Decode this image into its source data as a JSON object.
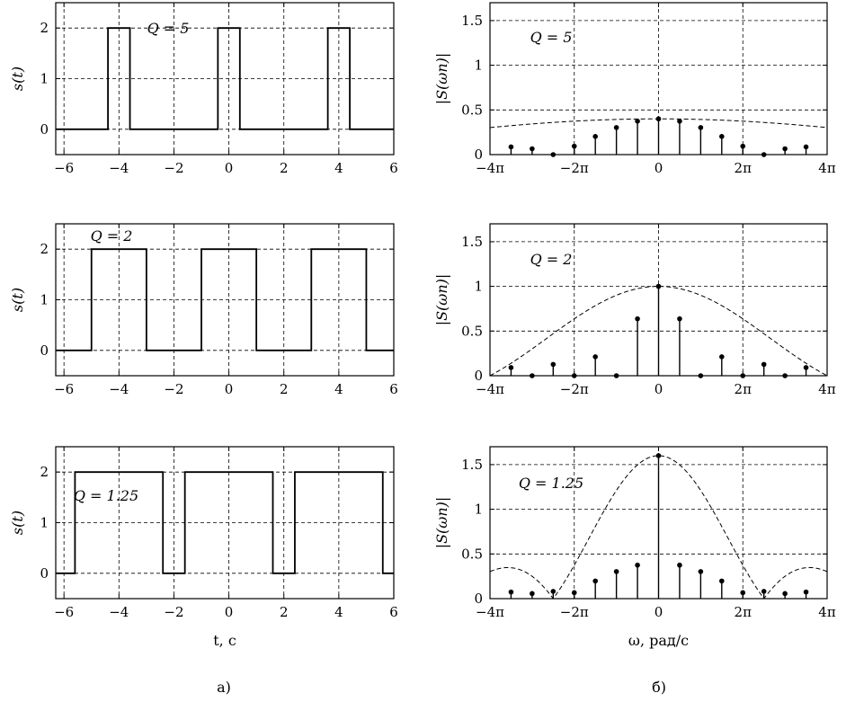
{
  "figure": {
    "captions": {
      "left": "а)",
      "right": "б)"
    }
  },
  "chart_data": [
    {
      "type": "line",
      "panel": "time-Q5",
      "annotation": "Q = 5",
      "xlabel": "",
      "ylabel": "s(t)",
      "xlim": [
        -6.3,
        6
      ],
      "ylim": [
        -0.5,
        2.5
      ],
      "xticks": [
        -6,
        -4,
        -2,
        0,
        2,
        4,
        6
      ],
      "xtick_labels": [
        "−6",
        "−4",
        "−2",
        "0",
        "2",
        "4",
        "6"
      ],
      "yticks": [
        0,
        1,
        2
      ],
      "ytick_labels": [
        "0",
        "1",
        "2"
      ],
      "grid": true,
      "period": 4,
      "pulse_width": 0.8,
      "amplitude": 2,
      "pulse_centers": [
        -4,
        0,
        4
      ]
    },
    {
      "type": "line",
      "panel": "time-Q2",
      "annotation": "Q = 2",
      "xlabel": "",
      "ylabel": "s(t)",
      "xlim": [
        -6.3,
        6
      ],
      "ylim": [
        -0.5,
        2.5
      ],
      "xticks": [
        -6,
        -4,
        -2,
        0,
        2,
        4,
        6
      ],
      "xtick_labels": [
        "−6",
        "−4",
        "−2",
        "0",
        "2",
        "4",
        "6"
      ],
      "yticks": [
        0,
        1,
        2
      ],
      "ytick_labels": [
        "0",
        "1",
        "2"
      ],
      "grid": true,
      "period": 4,
      "pulse_width": 2,
      "amplitude": 2,
      "pulse_centers": [
        -4,
        0,
        4
      ]
    },
    {
      "type": "line",
      "panel": "time-Q1.25",
      "annotation": "Q = 1.25",
      "xlabel": "t, с",
      "ylabel": "s(t)",
      "xlim": [
        -6.3,
        6
      ],
      "ylim": [
        -0.5,
        2.5
      ],
      "xticks": [
        -6,
        -4,
        -2,
        0,
        2,
        4,
        6
      ],
      "xtick_labels": [
        "−6",
        "−4",
        "−2",
        "0",
        "2",
        "4",
        "6"
      ],
      "yticks": [
        0,
        1,
        2
      ],
      "ytick_labels": [
        "0",
        "1",
        "2"
      ],
      "grid": true,
      "period": 4,
      "pulse_width": 3.2,
      "amplitude": 2,
      "pulse_centers": [
        -4,
        0,
        4
      ]
    },
    {
      "type": "scatter",
      "style": "stem",
      "panel": "spectrum-Q5",
      "annotation": "Q = 5",
      "xlabel": "",
      "ylabel": "|S(ωn)|",
      "xlim_pi": [
        -4,
        4
      ],
      "ylim": [
        0,
        1.7
      ],
      "xticks_pi": [
        -4,
        -2,
        0,
        2,
        4
      ],
      "xtick_labels": [
        "−4π",
        "−2π",
        "0",
        "2π",
        "4π"
      ],
      "yticks": [
        0,
        0.5,
        1,
        1.5
      ],
      "ytick_labels": [
        "0",
        "0.5",
        "1",
        "1.5"
      ],
      "grid": true,
      "envelope": "dashed |sinc|",
      "omega_pi": [
        -3.5,
        -3,
        -2.5,
        -2,
        -1.5,
        -1,
        -0.5,
        0,
        0.5,
        1,
        1.5,
        2,
        2.5,
        3,
        3.5
      ],
      "magnitude": [
        0.086,
        0.065,
        0,
        0.094,
        0.203,
        0.303,
        0.374,
        0.4,
        0.374,
        0.303,
        0.203,
        0.094,
        0,
        0.065,
        0.086
      ]
    },
    {
      "type": "scatter",
      "style": "stem",
      "panel": "spectrum-Q2",
      "annotation": "Q = 2",
      "xlabel": "",
      "ylabel": "|S(ωn)|",
      "xlim_pi": [
        -4,
        4
      ],
      "ylim": [
        0,
        1.7
      ],
      "xticks_pi": [
        -4,
        -2,
        0,
        2,
        4
      ],
      "xtick_labels": [
        "−4π",
        "−2π",
        "0",
        "2π",
        "4π"
      ],
      "yticks": [
        0,
        0.5,
        1,
        1.5
      ],
      "ytick_labels": [
        "0",
        "0.5",
        "1",
        "1.5"
      ],
      "grid": true,
      "envelope": "dashed |sinc|",
      "omega_pi": [
        -3.5,
        -3,
        -2.5,
        -2,
        -1.5,
        -1,
        -0.5,
        0,
        0.5,
        1,
        1.5,
        2,
        2.5,
        3,
        3.5
      ],
      "magnitude": [
        0.091,
        0,
        0.127,
        0,
        0.212,
        0,
        0.637,
        1,
        0.637,
        0,
        0.212,
        0,
        0.127,
        0,
        0.091
      ]
    },
    {
      "type": "scatter",
      "style": "stem",
      "panel": "spectrum-Q1.25",
      "annotation": "Q = 1.25",
      "xlabel": "ω, рад/с",
      "ylabel": "|S(ωn)|",
      "xlim_pi": [
        -4,
        4
      ],
      "ylim": [
        0,
        1.7
      ],
      "xticks_pi": [
        -4,
        -2,
        0,
        2,
        4
      ],
      "xtick_labels": [
        "−4π",
        "−2π",
        "0",
        "2π",
        "4π"
      ],
      "yticks": [
        0,
        0.5,
        1,
        1.5
      ],
      "ytick_labels": [
        "0",
        "0.5",
        "1",
        "1.5"
      ],
      "grid": true,
      "envelope": "dashed |sinc|",
      "omega_pi": [
        -3.5,
        -3,
        -2.5,
        -2,
        -1.5,
        -1,
        -0.5,
        0,
        0.5,
        1,
        1.5,
        2,
        2.5,
        3,
        3.5
      ],
      "magnitude": [
        0.074,
        0.057,
        0.081,
        0.067,
        0.197,
        0.303,
        0.375,
        1.6,
        0.375,
        0.303,
        0.197,
        0.067,
        0.081,
        0.057,
        0.074
      ]
    }
  ]
}
